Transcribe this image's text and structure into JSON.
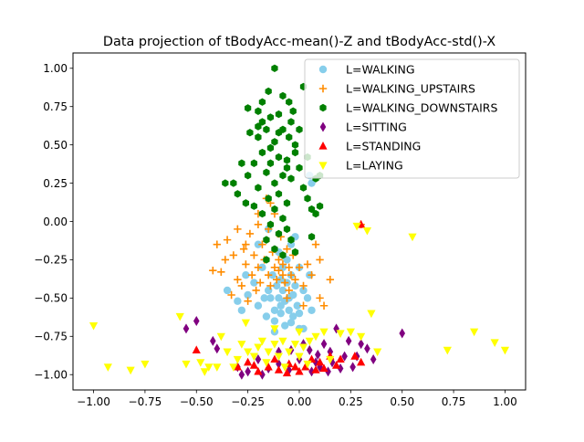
{
  "chart_data": {
    "type": "scatter",
    "title": "Data projection of tBodyAcc-mean()-Z and tBodyAcc-std()-X",
    "xlabel": "",
    "ylabel": "",
    "xlim": [
      -1.1,
      1.1
    ],
    "ylim": [
      -1.1,
      1.1
    ],
    "x_ticks": [
      -1.0,
      -0.75,
      -0.5,
      -0.25,
      0.0,
      0.25,
      0.5,
      0.75,
      1.0
    ],
    "x_tick_labels": [
      "−1.00",
      "−0.75",
      "−0.50",
      "−0.25",
      "0.00",
      "0.25",
      "0.50",
      "0.75",
      "1.00"
    ],
    "y_ticks": [
      -1.0,
      -0.75,
      -0.5,
      -0.25,
      0.0,
      0.25,
      0.5,
      0.75,
      1.0
    ],
    "y_tick_labels": [
      "−1.00",
      "−0.75",
      "−0.50",
      "−0.25",
      "0.00",
      "0.25",
      "0.50",
      "0.75",
      "1.00"
    ],
    "grid": false,
    "legend_position": "top-right",
    "series": [
      {
        "name": "L=WALKING",
        "color": "#87ceeb",
        "marker": "circle",
        "points": [
          [
            -0.3,
            -0.52
          ],
          [
            -0.25,
            -0.48
          ],
          [
            -0.22,
            -0.4
          ],
          [
            -0.2,
            -0.55
          ],
          [
            -0.18,
            -0.3
          ],
          [
            -0.16,
            -0.62
          ],
          [
            -0.15,
            -0.45
          ],
          [
            -0.14,
            -0.5
          ],
          [
            -0.13,
            -0.35
          ],
          [
            -0.12,
            -0.58
          ],
          [
            -0.12,
            -0.65
          ],
          [
            -0.11,
            -0.42
          ],
          [
            -0.1,
            -0.5
          ],
          [
            -0.1,
            -0.2
          ],
          [
            -0.09,
            -0.55
          ],
          [
            -0.09,
            -0.6
          ],
          [
            -0.08,
            -0.3
          ],
          [
            -0.08,
            -0.45
          ],
          [
            -0.07,
            -0.52
          ],
          [
            -0.07,
            -0.68
          ],
          [
            -0.06,
            -0.4
          ],
          [
            -0.06,
            -0.25
          ],
          [
            -0.05,
            -0.5
          ],
          [
            -0.05,
            -0.58
          ],
          [
            -0.04,
            -0.35
          ],
          [
            -0.04,
            -0.15
          ],
          [
            -0.03,
            -0.48
          ],
          [
            -0.03,
            -0.62
          ],
          [
            -0.02,
            -0.42
          ],
          [
            -0.02,
            -0.1
          ],
          [
            -0.01,
            -0.55
          ],
          [
            0.0,
            -0.3
          ],
          [
            0.0,
            -0.6
          ],
          [
            0.02,
            -0.45
          ],
          [
            0.02,
            -0.7
          ],
          [
            0.04,
            -0.5
          ],
          [
            0.05,
            -0.35
          ],
          [
            -0.2,
            -0.15
          ],
          [
            -0.15,
            -0.05
          ],
          [
            0.05,
            0.3
          ],
          [
            0.06,
            0.25
          ],
          [
            -0.35,
            -0.45
          ],
          [
            -0.26,
            -0.35
          ],
          [
            -0.28,
            -0.58
          ],
          [
            -0.12,
            -0.72
          ],
          [
            0.0,
            -0.7
          ],
          [
            -0.17,
            -0.5
          ],
          [
            -0.09,
            -0.38
          ],
          [
            -0.04,
            -0.66
          ],
          [
            0.06,
            -0.58
          ]
        ]
      },
      {
        "name": "L=WALKING_UPSTAIRS",
        "color": "#ff8c00",
        "marker": "plus",
        "points": [
          [
            -0.4,
            -0.15
          ],
          [
            -0.38,
            -0.33
          ],
          [
            -0.35,
            -0.12
          ],
          [
            -0.33,
            -0.48
          ],
          [
            -0.32,
            -0.22
          ],
          [
            -0.3,
            -0.38
          ],
          [
            -0.3,
            -0.05
          ],
          [
            -0.28,
            -0.42
          ],
          [
            -0.27,
            -0.18
          ],
          [
            -0.26,
            -0.28
          ],
          [
            -0.25,
            -0.52
          ],
          [
            -0.24,
            -0.08
          ],
          [
            -0.23,
            -0.35
          ],
          [
            -0.22,
            -0.22
          ],
          [
            -0.21,
            -0.45
          ],
          [
            -0.2,
            -0.02
          ],
          [
            -0.2,
            -0.3
          ],
          [
            -0.19,
            -0.4
          ],
          [
            -0.18,
            -0.15
          ],
          [
            -0.17,
            -0.25
          ],
          [
            -0.16,
            0.15
          ],
          [
            -0.15,
            -0.35
          ],
          [
            -0.15,
            -0.05
          ],
          [
            -0.14,
            -0.42
          ],
          [
            -0.13,
            -0.2
          ],
          [
            -0.12,
            -0.3
          ],
          [
            -0.12,
            0.05
          ],
          [
            -0.11,
            -0.38
          ],
          [
            -0.1,
            -0.25
          ],
          [
            -0.1,
            -0.32
          ],
          [
            -0.09,
            -0.1
          ],
          [
            -0.08,
            -0.35
          ],
          [
            -0.08,
            -0.28
          ],
          [
            -0.07,
            -0.4
          ],
          [
            -0.06,
            -0.18
          ],
          [
            -0.05,
            -0.3
          ],
          [
            -0.05,
            -0.45
          ],
          [
            -0.04,
            -0.35
          ],
          [
            -0.03,
            -0.22
          ],
          [
            -0.02,
            -0.38
          ],
          [
            0.0,
            -0.3
          ],
          [
            0.02,
            -0.42
          ],
          [
            0.04,
            -0.28
          ],
          [
            0.06,
            -0.35
          ],
          [
            0.1,
            -0.5
          ],
          [
            0.12,
            -0.55
          ],
          [
            0.15,
            -0.38
          ],
          [
            0.08,
            -0.15
          ],
          [
            0.1,
            -0.25
          ],
          [
            0.3,
            -0.02
          ],
          [
            -0.42,
            -0.32
          ],
          [
            -0.36,
            -0.25
          ],
          [
            -0.14,
            0.12
          ],
          [
            -0.2,
            0.05
          ],
          [
            -0.26,
            -0.15
          ],
          [
            0.02,
            -0.55
          ],
          [
            -0.06,
            -0.5
          ]
        ]
      },
      {
        "name": "L=WALKING_DOWNSTAIRS",
        "color": "#008000",
        "marker": "hexagon",
        "points": [
          [
            -0.12,
            1.0
          ],
          [
            -0.15,
            0.85
          ],
          [
            -0.08,
            0.82
          ],
          [
            -0.18,
            0.78
          ],
          [
            -0.05,
            0.78
          ],
          [
            -0.2,
            0.72
          ],
          [
            -0.1,
            0.7
          ],
          [
            -0.25,
            0.74
          ],
          [
            -0.14,
            0.68
          ],
          [
            -0.03,
            0.72
          ],
          [
            -0.16,
            0.6
          ],
          [
            -0.08,
            0.6
          ],
          [
            -0.2,
            0.55
          ],
          [
            -0.12,
            0.52
          ],
          [
            -0.05,
            0.55
          ],
          [
            -0.02,
            0.5
          ],
          [
            -0.18,
            0.45
          ],
          [
            -0.1,
            0.42
          ],
          [
            -0.14,
            0.38
          ],
          [
            -0.06,
            0.4
          ],
          [
            -0.22,
            0.38
          ],
          [
            0.0,
            0.35
          ],
          [
            -0.16,
            0.32
          ],
          [
            -0.08,
            0.3
          ],
          [
            -0.04,
            0.28
          ],
          [
            -0.12,
            0.25
          ],
          [
            -0.2,
            0.22
          ],
          [
            0.02,
            0.22
          ],
          [
            -0.1,
            0.18
          ],
          [
            -0.15,
            0.15
          ],
          [
            -0.06,
            0.12
          ],
          [
            0.04,
            0.15
          ],
          [
            -0.12,
            0.08
          ],
          [
            -0.18,
            0.05
          ],
          [
            -0.08,
            0.02
          ],
          [
            -0.14,
            -0.02
          ],
          [
            -0.06,
            -0.05
          ],
          [
            -0.1,
            -0.08
          ],
          [
            -0.16,
            -0.12
          ],
          [
            -0.04,
            -0.12
          ],
          [
            -0.12,
            -0.18
          ],
          [
            -0.08,
            -0.22
          ],
          [
            -0.02,
            0.45
          ],
          [
            -0.14,
            0.48
          ],
          [
            -0.06,
            0.35
          ],
          [
            -0.28,
            0.38
          ],
          [
            -0.25,
            0.3
          ],
          [
            0.08,
            0.28
          ],
          [
            0.1,
            0.1
          ],
          [
            -0.3,
            0.18
          ],
          [
            -0.32,
            0.25
          ],
          [
            0.06,
            0.08
          ],
          [
            -0.1,
            0.58
          ],
          [
            -0.18,
            0.65
          ],
          [
            -0.24,
            0.58
          ],
          [
            0.0,
            0.6
          ],
          [
            -0.2,
            0.62
          ],
          [
            -0.04,
            0.65
          ],
          [
            0.1,
            0.3
          ],
          [
            0.08,
            0.05
          ],
          [
            -0.22,
            0.1
          ],
          [
            0.06,
            -0.1
          ],
          [
            -0.02,
            -0.2
          ],
          [
            -0.16,
            -0.25
          ],
          [
            -0.26,
            0.12
          ],
          [
            0.04,
            0.42
          ],
          [
            -0.36,
            0.25
          ],
          [
            0.02,
            0.88
          ]
        ]
      },
      {
        "name": "L=SITTING",
        "color": "#800080",
        "marker": "thin_diamond",
        "points": [
          [
            -0.55,
            -0.7
          ],
          [
            -0.5,
            -0.65
          ],
          [
            -0.42,
            -0.78
          ],
          [
            -0.4,
            -0.83
          ],
          [
            -0.3,
            -0.95
          ],
          [
            -0.25,
            -0.98
          ],
          [
            -0.2,
            -0.9
          ],
          [
            -0.15,
            -0.96
          ],
          [
            -0.1,
            -0.93
          ],
          [
            -0.05,
            -0.97
          ],
          [
            0.0,
            -0.9
          ],
          [
            0.05,
            -0.84
          ],
          [
            0.08,
            -0.92
          ],
          [
            0.1,
            -0.95
          ],
          [
            0.12,
            -0.8
          ],
          [
            0.15,
            -0.85
          ],
          [
            0.18,
            -0.7
          ],
          [
            0.2,
            -0.96
          ],
          [
            0.22,
            -0.88
          ],
          [
            0.24,
            -0.78
          ],
          [
            0.3,
            -0.8
          ],
          [
            0.33,
            -0.83
          ],
          [
            0.36,
            -0.9
          ],
          [
            0.5,
            -0.73
          ],
          [
            -0.1,
            -0.85
          ],
          [
            0.02,
            -0.8
          ],
          [
            0.06,
            -0.98
          ],
          [
            -0.18,
            -1.0
          ],
          [
            0.14,
            -0.98
          ],
          [
            0.26,
            -0.95
          ],
          [
            -0.28,
            -1.0
          ],
          [
            0.16,
            -0.92
          ],
          [
            -0.04,
            -0.84
          ],
          [
            0.09,
            -0.87
          ],
          [
            0.28,
            -0.88
          ]
        ]
      },
      {
        "name": "L=STANDING",
        "color": "#ff0000",
        "marker": "triangle",
        "points": [
          [
            -0.5,
            -0.84
          ],
          [
            -0.3,
            -0.95
          ],
          [
            -0.25,
            -0.92
          ],
          [
            -0.2,
            -0.98
          ],
          [
            -0.15,
            -0.95
          ],
          [
            -0.1,
            -0.97
          ],
          [
            -0.05,
            -0.93
          ],
          [
            0.0,
            -0.98
          ],
          [
            0.03,
            -0.95
          ],
          [
            0.06,
            -0.9
          ],
          [
            0.1,
            -0.92
          ],
          [
            0.12,
            -0.96
          ],
          [
            0.15,
            -0.88
          ],
          [
            0.2,
            -0.9
          ],
          [
            0.27,
            -0.88
          ],
          [
            0.3,
            -0.92
          ],
          [
            0.3,
            -0.02
          ],
          [
            -0.12,
            -0.9
          ],
          [
            -0.06,
            -0.99
          ],
          [
            0.08,
            -0.97
          ],
          [
            -0.22,
            -0.94
          ],
          [
            0.18,
            -0.94
          ],
          [
            -0.02,
            -0.95
          ]
        ]
      },
      {
        "name": "L=LAYING",
        "color": "#ffff00",
        "marker": "triangle_down",
        "points": [
          [
            -1.0,
            -0.68
          ],
          [
            -0.93,
            -0.95
          ],
          [
            -0.82,
            -0.97
          ],
          [
            -0.75,
            -0.93
          ],
          [
            -0.58,
            -0.62
          ],
          [
            -0.55,
            -0.93
          ],
          [
            -0.48,
            -0.92
          ],
          [
            -0.46,
            -0.98
          ],
          [
            -0.44,
            -0.95
          ],
          [
            -0.4,
            -0.95
          ],
          [
            -0.35,
            -0.85
          ],
          [
            -0.3,
            -0.9
          ],
          [
            -0.28,
            -0.8
          ],
          [
            -0.25,
            -0.85
          ],
          [
            -0.22,
            -0.88
          ],
          [
            -0.2,
            -0.82
          ],
          [
            -0.18,
            -0.78
          ],
          [
            -0.15,
            -0.85
          ],
          [
            -0.12,
            -0.8
          ],
          [
            -0.1,
            -0.88
          ],
          [
            -0.08,
            -0.78
          ],
          [
            -0.05,
            -0.85
          ],
          [
            -0.02,
            -0.8
          ],
          [
            0.0,
            -0.88
          ],
          [
            0.02,
            -0.82
          ],
          [
            0.05,
            -0.78
          ],
          [
            0.08,
            -0.75
          ],
          [
            0.12,
            -0.72
          ],
          [
            0.2,
            -0.73
          ],
          [
            0.25,
            -0.72
          ],
          [
            0.3,
            -0.75
          ],
          [
            0.28,
            -0.03
          ],
          [
            0.33,
            -0.06
          ],
          [
            0.35,
            -0.6
          ],
          [
            0.38,
            -0.85
          ],
          [
            0.55,
            -0.1
          ],
          [
            0.72,
            -0.84
          ],
          [
            0.85,
            -0.72
          ],
          [
            0.95,
            -0.79
          ],
          [
            1.0,
            -0.84
          ],
          [
            -0.26,
            -0.66
          ],
          [
            -0.12,
            -0.7
          ],
          [
            0.0,
            -0.72
          ],
          [
            -0.38,
            -0.75
          ],
          [
            -0.32,
            -0.95
          ],
          [
            -0.07,
            -0.95
          ],
          [
            0.15,
            -0.9
          ],
          [
            -0.16,
            -0.92
          ],
          [
            0.04,
            -0.93
          ]
        ]
      }
    ]
  }
}
